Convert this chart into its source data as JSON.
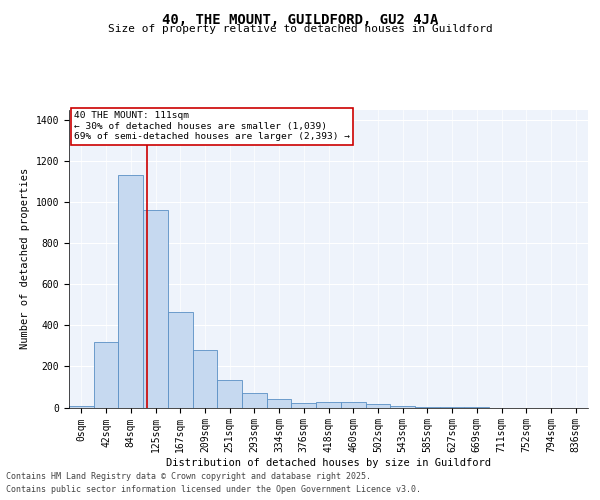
{
  "title": "40, THE MOUNT, GUILDFORD, GU2 4JA",
  "subtitle": "Size of property relative to detached houses in Guildford",
  "xlabel": "Distribution of detached houses by size in Guildford",
  "ylabel": "Number of detached properties",
  "bar_color": "#c6d9f0",
  "bar_edge_color": "#5a8fc4",
  "background_color": "#eef3fb",
  "grid_color": "#ffffff",
  "categories": [
    "0sqm",
    "42sqm",
    "84sqm",
    "125sqm",
    "167sqm",
    "209sqm",
    "251sqm",
    "293sqm",
    "334sqm",
    "376sqm",
    "418sqm",
    "460sqm",
    "502sqm",
    "543sqm",
    "585sqm",
    "627sqm",
    "669sqm",
    "711sqm",
    "752sqm",
    "794sqm",
    "836sqm"
  ],
  "values": [
    8,
    320,
    1135,
    965,
    465,
    278,
    135,
    70,
    40,
    22,
    25,
    25,
    18,
    5,
    2,
    2,
    1,
    0,
    0,
    0,
    0
  ],
  "ylim": [
    0,
    1450
  ],
  "yticks": [
    0,
    200,
    400,
    600,
    800,
    1000,
    1200,
    1400
  ],
  "property_line_x": 2.66,
  "property_line_color": "#cc0000",
  "annotation_text": "40 THE MOUNT: 111sqm\n← 30% of detached houses are smaller (1,039)\n69% of semi-detached houses are larger (2,393) →",
  "annotation_box_color": "#cc0000",
  "footer_line1": "Contains HM Land Registry data © Crown copyright and database right 2025.",
  "footer_line2": "Contains public sector information licensed under the Open Government Licence v3.0.",
  "title_fontsize": 10,
  "subtitle_fontsize": 8,
  "axis_label_fontsize": 7.5,
  "tick_fontsize": 7,
  "annotation_fontsize": 6.8,
  "footer_fontsize": 6
}
